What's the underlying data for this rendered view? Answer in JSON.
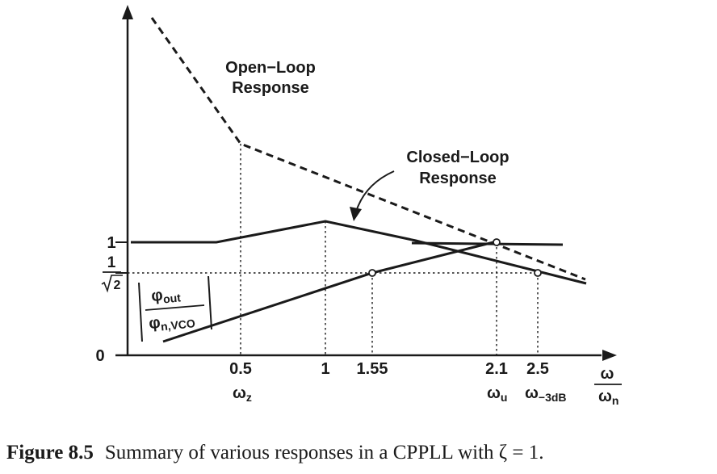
{
  "figure": {
    "y_labels": {
      "one": "1",
      "inv_sqrt2_num": "1",
      "inv_sqrt2_den": "2",
      "zero": "0"
    },
    "x_ticks": [
      "0.5",
      "1",
      "1.55",
      "2.1",
      "2.5"
    ],
    "x_ticks_sub": {
      "z_main": "ω",
      "z_sub": "z",
      "u_main": "ω",
      "u_sub": "u",
      "m3db_main": "ω",
      "m3db_sub": "−3dB"
    },
    "x_axis_label": {
      "num": "ω",
      "den_main": "ω",
      "den_sub": "n"
    },
    "open_loop_label": [
      "Open−Loop",
      "Response"
    ],
    "closed_loop_label": [
      "Closed−Loop",
      "Response"
    ],
    "noise_tf": {
      "num_main": "φ",
      "num_sub": "out",
      "den_main": "φ",
      "den_sub": "n,VCO"
    }
  },
  "caption": {
    "label": "Figure 8.5",
    "text": "Summary of various responses in a CPPLL with ζ = 1."
  }
}
